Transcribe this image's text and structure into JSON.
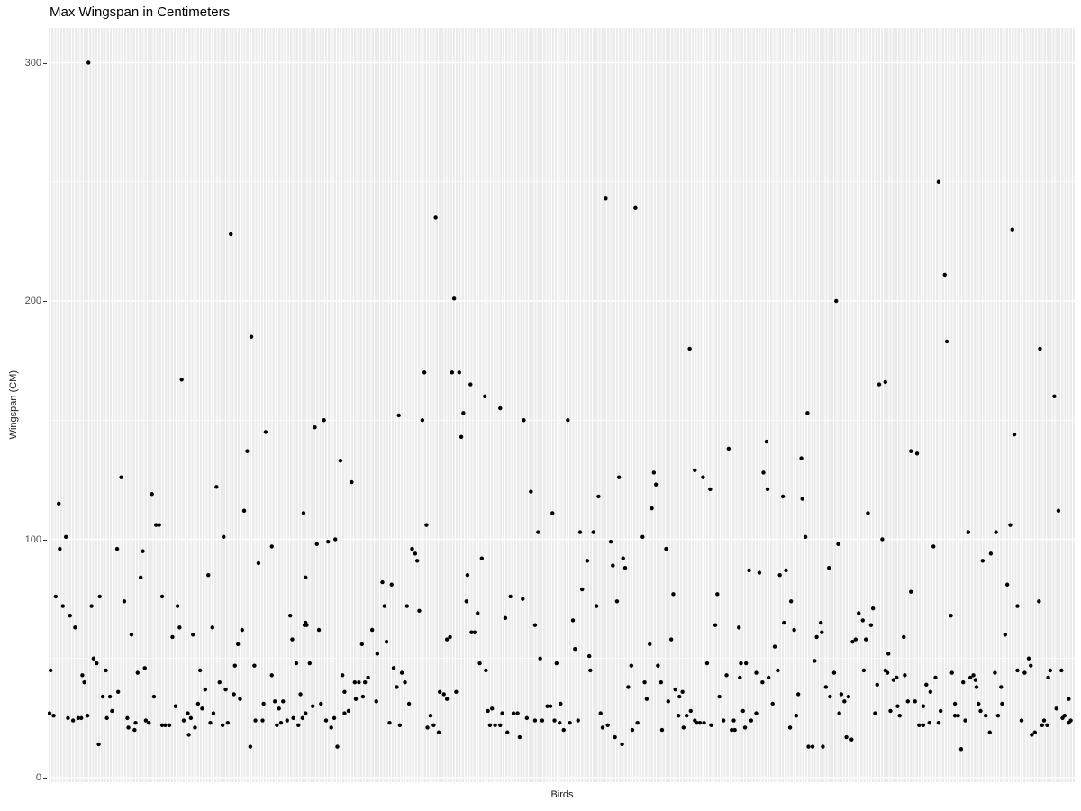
{
  "title": "Max Wingspan in Centimeters",
  "axes": {
    "x_label": "Birds",
    "y_label": "Wingspan (CM)",
    "y_tick_labels": [
      "0",
      "100",
      "200",
      "300"
    ]
  },
  "colors": {
    "panel_background": "#ebebeb",
    "gridline": "#ffffff",
    "point": "#000000",
    "tick_text": "#4d4d4d",
    "axis_title_text": "#1a1a1a",
    "title_text": "#000000"
  },
  "chart_data": {
    "type": "scatter",
    "title": "Max Wingspan in Centimeters",
    "xlabel": "Birds",
    "ylabel": "Wingspan (CM)",
    "ylim": [
      0,
      314
    ],
    "y_major_ticks": [
      0,
      100,
      200,
      300
    ],
    "y_minor_ticks": [
      50,
      150,
      250
    ],
    "x_is_categorical": true,
    "n_categories_approx": 354,
    "grid": "gray panel, white vertical line per category, white horizontal major/minor lines",
    "legend": "none",
    "point_note": "points given as [x_fraction_across_panel, wingspan_cm]",
    "points": [
      [
        0.038,
        300
      ],
      [
        0.177,
        228
      ],
      [
        0.377,
        235
      ],
      [
        0.543,
        243
      ],
      [
        0.572,
        239
      ],
      [
        0.868,
        250
      ],
      [
        0.94,
        230
      ],
      [
        0.874,
        211
      ],
      [
        0.197,
        185
      ],
      [
        0.129,
        167
      ],
      [
        0.211,
        145
      ],
      [
        0.193,
        137
      ],
      [
        0.07,
        126
      ],
      [
        0.163,
        122
      ],
      [
        0.1,
        119
      ],
      [
        0.009,
        115
      ],
      [
        0.19,
        112
      ],
      [
        0.248,
        111
      ],
      [
        0.104,
        106
      ],
      [
        0.107,
        106
      ],
      [
        0.395,
        201
      ],
      [
        0.366,
        170
      ],
      [
        0.393,
        170
      ],
      [
        0.4,
        170
      ],
      [
        0.411,
        165
      ],
      [
        0.425,
        160
      ],
      [
        0.44,
        155
      ],
      [
        0.341,
        152
      ],
      [
        0.404,
        153
      ],
      [
        0.364,
        150
      ],
      [
        0.463,
        150
      ],
      [
        0.268,
        150
      ],
      [
        0.259,
        147
      ],
      [
        0.402,
        143
      ],
      [
        0.284,
        133
      ],
      [
        0.295,
        124
      ],
      [
        0.47,
        120
      ],
      [
        0.491,
        111
      ],
      [
        0.368,
        106
      ],
      [
        0.625,
        180
      ],
      [
        0.74,
        153
      ],
      [
        0.506,
        150
      ],
      [
        0.7,
        141
      ],
      [
        0.663,
        138
      ],
      [
        0.734,
        134
      ],
      [
        0.63,
        129
      ],
      [
        0.697,
        128
      ],
      [
        0.59,
        128
      ],
      [
        0.638,
        126
      ],
      [
        0.556,
        126
      ],
      [
        0.592,
        123
      ],
      [
        0.645,
        121
      ],
      [
        0.701,
        121
      ],
      [
        0.536,
        118
      ],
      [
        0.716,
        118
      ],
      [
        0.735,
        117
      ],
      [
        0.588,
        113
      ],
      [
        0.768,
        200
      ],
      [
        0.876,
        183
      ],
      [
        0.967,
        180
      ],
      [
        0.81,
        165
      ],
      [
        0.816,
        166
      ],
      [
        0.981,
        160
      ],
      [
        0.942,
        144
      ],
      [
        0.841,
        137
      ],
      [
        0.847,
        136
      ],
      [
        0.799,
        111
      ],
      [
        0.985,
        112
      ],
      [
        0.938,
        106
      ],
      [
        0.016,
        101
      ],
      [
        0.01,
        96
      ],
      [
        0.17,
        101
      ],
      [
        0.066,
        96
      ],
      [
        0.091,
        95
      ],
      [
        0.217,
        97
      ],
      [
        0.204,
        90
      ],
      [
        0.155,
        85
      ],
      [
        0.089,
        84
      ],
      [
        0.006,
        76
      ],
      [
        0.049,
        76
      ],
      [
        0.11,
        76
      ],
      [
        0.013,
        72
      ],
      [
        0.041,
        72
      ],
      [
        0.073,
        74
      ],
      [
        0.125,
        72
      ],
      [
        0.02,
        68
      ],
      [
        0.235,
        68
      ],
      [
        0.025,
        63
      ],
      [
        0.127,
        63
      ],
      [
        0.159,
        63
      ],
      [
        0.188,
        62
      ],
      [
        0.249,
        64
      ],
      [
        0.08,
        60
      ],
      [
        0.12,
        59
      ],
      [
        0.14,
        60
      ],
      [
        0.237,
        58
      ],
      [
        0.184,
        56
      ],
      [
        0.043,
        50
      ],
      [
        0.046,
        48
      ],
      [
        0.181,
        47
      ],
      [
        0.2,
        47
      ],
      [
        0.241,
        48
      ],
      [
        0.001,
        45
      ],
      [
        0.055,
        45
      ],
      [
        0.093,
        46
      ],
      [
        0.086,
        44
      ],
      [
        0.147,
        45
      ],
      [
        0.217,
        43
      ],
      [
        0.032,
        43
      ],
      [
        0.034,
        40
      ],
      [
        0.152,
        37
      ],
      [
        0.166,
        40
      ],
      [
        0.172,
        37
      ],
      [
        0.18,
        35
      ],
      [
        0.186,
        33
      ],
      [
        0.052,
        34
      ],
      [
        0.059,
        34
      ],
      [
        0.067,
        36
      ],
      [
        0.102,
        34
      ],
      [
        0.123,
        30
      ],
      [
        0.145,
        31
      ],
      [
        0.149,
        29
      ],
      [
        0.16,
        27
      ],
      [
        0.209,
        31
      ],
      [
        0.22,
        32
      ],
      [
        0.224,
        29
      ],
      [
        0.228,
        32
      ],
      [
        0.245,
        35
      ],
      [
        0.247,
        25
      ],
      [
        0.0,
        27
      ],
      [
        0.004,
        26
      ],
      [
        0.018,
        25
      ],
      [
        0.023,
        24
      ],
      [
        0.028,
        25
      ],
      [
        0.031,
        25
      ],
      [
        0.037,
        26
      ],
      [
        0.056,
        25
      ],
      [
        0.061,
        28
      ],
      [
        0.076,
        25
      ],
      [
        0.077,
        21
      ],
      [
        0.083,
        20
      ],
      [
        0.084,
        23
      ],
      [
        0.094,
        24
      ],
      [
        0.097,
        23
      ],
      [
        0.11,
        22
      ],
      [
        0.113,
        22
      ],
      [
        0.117,
        22
      ],
      [
        0.131,
        24
      ],
      [
        0.135,
        27
      ],
      [
        0.138,
        25
      ],
      [
        0.142,
        21
      ],
      [
        0.136,
        18
      ],
      [
        0.157,
        23
      ],
      [
        0.169,
        22
      ],
      [
        0.174,
        23
      ],
      [
        0.201,
        24
      ],
      [
        0.208,
        24
      ],
      [
        0.222,
        22
      ],
      [
        0.226,
        23
      ],
      [
        0.232,
        24
      ],
      [
        0.238,
        25
      ],
      [
        0.243,
        22
      ],
      [
        0.048,
        14
      ],
      [
        0.196,
        13
      ],
      [
        0.477,
        103
      ],
      [
        0.261,
        98
      ],
      [
        0.272,
        99
      ],
      [
        0.279,
        100
      ],
      [
        0.354,
        96
      ],
      [
        0.357,
        94
      ],
      [
        0.359,
        91
      ],
      [
        0.422,
        92
      ],
      [
        0.408,
        85
      ],
      [
        0.25,
        84
      ],
      [
        0.325,
        82
      ],
      [
        0.334,
        81
      ],
      [
        0.45,
        76
      ],
      [
        0.462,
        75
      ],
      [
        0.407,
        74
      ],
      [
        0.327,
        72
      ],
      [
        0.349,
        72
      ],
      [
        0.361,
        70
      ],
      [
        0.418,
        69
      ],
      [
        0.445,
        67
      ],
      [
        0.25,
        65
      ],
      [
        0.251,
        64
      ],
      [
        0.263,
        62
      ],
      [
        0.315,
        62
      ],
      [
        0.412,
        61
      ],
      [
        0.415,
        61
      ],
      [
        0.474,
        64
      ],
      [
        0.388,
        58
      ],
      [
        0.391,
        59
      ],
      [
        0.305,
        56
      ],
      [
        0.329,
        57
      ],
      [
        0.32,
        52
      ],
      [
        0.254,
        48
      ],
      [
        0.42,
        48
      ],
      [
        0.479,
        50
      ],
      [
        0.495,
        48
      ],
      [
        0.426,
        45
      ],
      [
        0.336,
        46
      ],
      [
        0.286,
        43
      ],
      [
        0.344,
        44
      ],
      [
        0.311,
        42
      ],
      [
        0.298,
        40
      ],
      [
        0.302,
        40
      ],
      [
        0.308,
        40
      ],
      [
        0.347,
        40
      ],
      [
        0.339,
        38
      ],
      [
        0.288,
        36
      ],
      [
        0.381,
        36
      ],
      [
        0.385,
        35
      ],
      [
        0.397,
        36
      ],
      [
        0.388,
        33
      ],
      [
        0.299,
        33
      ],
      [
        0.306,
        34
      ],
      [
        0.319,
        32
      ],
      [
        0.351,
        31
      ],
      [
        0.265,
        31
      ],
      [
        0.428,
        28
      ],
      [
        0.432,
        29
      ],
      [
        0.442,
        27
      ],
      [
        0.453,
        27
      ],
      [
        0.457,
        27
      ],
      [
        0.466,
        25
      ],
      [
        0.474,
        24
      ],
      [
        0.481,
        24
      ],
      [
        0.493,
        24
      ],
      [
        0.499,
        31
      ],
      [
        0.486,
        30
      ],
      [
        0.489,
        30
      ],
      [
        0.257,
        30
      ],
      [
        0.25,
        27
      ],
      [
        0.27,
        24
      ],
      [
        0.278,
        25
      ],
      [
        0.275,
        21
      ],
      [
        0.288,
        27
      ],
      [
        0.292,
        28
      ],
      [
        0.332,
        23
      ],
      [
        0.342,
        22
      ],
      [
        0.369,
        21
      ],
      [
        0.372,
        26
      ],
      [
        0.375,
        22
      ],
      [
        0.38,
        19
      ],
      [
        0.43,
        22
      ],
      [
        0.435,
        22
      ],
      [
        0.44,
        22
      ],
      [
        0.447,
        19
      ],
      [
        0.459,
        17
      ],
      [
        0.498,
        23
      ],
      [
        0.281,
        13
      ],
      [
        0.518,
        103
      ],
      [
        0.531,
        103
      ],
      [
        0.548,
        99
      ],
      [
        0.579,
        101
      ],
      [
        0.738,
        101
      ],
      [
        0.602,
        96
      ],
      [
        0.525,
        91
      ],
      [
        0.56,
        92
      ],
      [
        0.55,
        89
      ],
      [
        0.562,
        88
      ],
      [
        0.683,
        87
      ],
      [
        0.693,
        86
      ],
      [
        0.713,
        85
      ],
      [
        0.719,
        87
      ],
      [
        0.52,
        79
      ],
      [
        0.609,
        77
      ],
      [
        0.652,
        77
      ],
      [
        0.554,
        74
      ],
      [
        0.534,
        72
      ],
      [
        0.724,
        74
      ],
      [
        0.511,
        66
      ],
      [
        0.65,
        64
      ],
      [
        0.673,
        63
      ],
      [
        0.717,
        65
      ],
      [
        0.727,
        62
      ],
      [
        0.749,
        59
      ],
      [
        0.607,
        58
      ],
      [
        0.586,
        56
      ],
      [
        0.708,
        55
      ],
      [
        0.513,
        54
      ],
      [
        0.527,
        51
      ],
      [
        0.747,
        49
      ],
      [
        0.568,
        47
      ],
      [
        0.594,
        47
      ],
      [
        0.642,
        48
      ],
      [
        0.675,
        48
      ],
      [
        0.68,
        48
      ],
      [
        0.528,
        45
      ],
      [
        0.661,
        43
      ],
      [
        0.674,
        42
      ],
      [
        0.69,
        44
      ],
      [
        0.702,
        42
      ],
      [
        0.711,
        45
      ],
      [
        0.696,
        40
      ],
      [
        0.581,
        40
      ],
      [
        0.597,
        40
      ],
      [
        0.565,
        38
      ],
      [
        0.611,
        37
      ],
      [
        0.618,
        36
      ],
      [
        0.615,
        34
      ],
      [
        0.583,
        33
      ],
      [
        0.654,
        34
      ],
      [
        0.731,
        35
      ],
      [
        0.604,
        32
      ],
      [
        0.706,
        31
      ],
      [
        0.538,
        27
      ],
      [
        0.626,
        28
      ],
      [
        0.622,
        26
      ],
      [
        0.614,
        26
      ],
      [
        0.63,
        24
      ],
      [
        0.632,
        23
      ],
      [
        0.635,
        23
      ],
      [
        0.639,
        23
      ],
      [
        0.646,
        22
      ],
      [
        0.658,
        24
      ],
      [
        0.668,
        24
      ],
      [
        0.669,
        20
      ],
      [
        0.679,
        21
      ],
      [
        0.685,
        24
      ],
      [
        0.69,
        27
      ],
      [
        0.677,
        28
      ],
      [
        0.508,
        23
      ],
      [
        0.516,
        24
      ],
      [
        0.502,
        20
      ],
      [
        0.54,
        21
      ],
      [
        0.545,
        22
      ],
      [
        0.569,
        20
      ],
      [
        0.574,
        23
      ],
      [
        0.598,
        20
      ],
      [
        0.619,
        21
      ],
      [
        0.666,
        20
      ],
      [
        0.723,
        21
      ],
      [
        0.729,
        26
      ],
      [
        0.552,
        17
      ],
      [
        0.559,
        14
      ],
      [
        0.741,
        13
      ],
      [
        0.745,
        13
      ],
      [
        0.897,
        103
      ],
      [
        0.924,
        103
      ],
      [
        0.77,
        98
      ],
      [
        0.813,
        100
      ],
      [
        0.863,
        97
      ],
      [
        0.919,
        94
      ],
      [
        0.911,
        91
      ],
      [
        0.761,
        88
      ],
      [
        0.935,
        81
      ],
      [
        0.841,
        78
      ],
      [
        0.966,
        74
      ],
      [
        0.945,
        72
      ],
      [
        0.79,
        69
      ],
      [
        0.804,
        71
      ],
      [
        0.794,
        66
      ],
      [
        0.802,
        64
      ],
      [
        0.753,
        65
      ],
      [
        0.754,
        61
      ],
      [
        0.88,
        68
      ],
      [
        0.784,
        57
      ],
      [
        0.787,
        58
      ],
      [
        0.797,
        58
      ],
      [
        0.834,
        59
      ],
      [
        0.933,
        60
      ],
      [
        0.819,
        52
      ],
      [
        0.956,
        50
      ],
      [
        0.958,
        47
      ],
      [
        0.945,
        45
      ],
      [
        0.952,
        44
      ],
      [
        0.766,
        44
      ],
      [
        0.795,
        45
      ],
      [
        0.816,
        45
      ],
      [
        0.818,
        44
      ],
      [
        0.824,
        41
      ],
      [
        0.827,
        42
      ],
      [
        0.835,
        43
      ],
      [
        0.881,
        44
      ],
      [
        0.865,
        42
      ],
      [
        0.892,
        40
      ],
      [
        0.899,
        42
      ],
      [
        0.902,
        43
      ],
      [
        0.904,
        41
      ],
      [
        0.923,
        44
      ],
      [
        0.808,
        39
      ],
      [
        0.856,
        39
      ],
      [
        0.86,
        36
      ],
      [
        0.905,
        38
      ],
      [
        0.929,
        38
      ],
      [
        0.758,
        38
      ],
      [
        0.762,
        34
      ],
      [
        0.773,
        35
      ],
      [
        0.78,
        34
      ],
      [
        0.776,
        32
      ],
      [
        0.838,
        32
      ],
      [
        0.845,
        32
      ],
      [
        0.853,
        30
      ],
      [
        0.828,
        30
      ],
      [
        0.884,
        31
      ],
      [
        0.907,
        31
      ],
      [
        0.909,
        28
      ],
      [
        0.914,
        26
      ],
      [
        0.93,
        31
      ],
      [
        0.771,
        27
      ],
      [
        0.806,
        27
      ],
      [
        0.821,
        28
      ],
      [
        0.83,
        26
      ],
      [
        0.87,
        28
      ],
      [
        0.884,
        26
      ],
      [
        0.887,
        26
      ],
      [
        0.894,
        24
      ],
      [
        0.849,
        22
      ],
      [
        0.853,
        22
      ],
      [
        0.859,
        23
      ],
      [
        0.868,
        23
      ],
      [
        0.926,
        26
      ],
      [
        0.949,
        24
      ],
      [
        0.969,
        22
      ],
      [
        0.971,
        24
      ],
      [
        0.974,
        22
      ],
      [
        0.983,
        29
      ],
      [
        0.989,
        25
      ],
      [
        0.991,
        26
      ],
      [
        0.995,
        23
      ],
      [
        0.997,
        24
      ],
      [
        0.995,
        33
      ],
      [
        0.959,
        18
      ],
      [
        0.962,
        19
      ],
      [
        0.918,
        19
      ],
      [
        0.778,
        17
      ],
      [
        0.783,
        16
      ],
      [
        0.89,
        12
      ],
      [
        0.755,
        13
      ],
      [
        0.988,
        45
      ],
      [
        0.977,
        45
      ],
      [
        0.975,
        42
      ]
    ]
  }
}
